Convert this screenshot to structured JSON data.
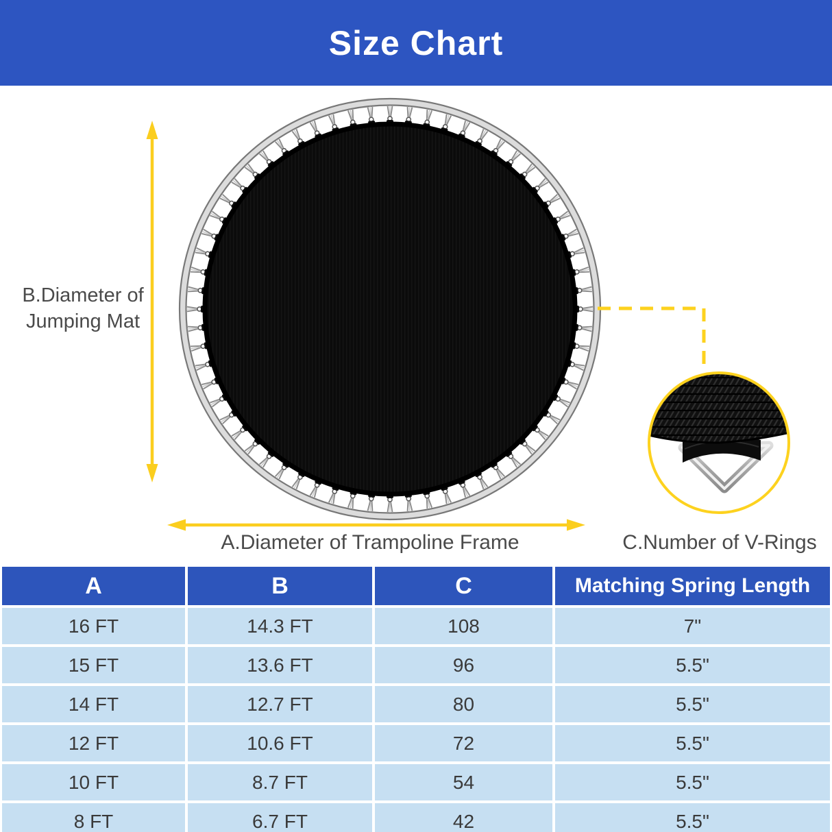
{
  "title": "Size Chart",
  "colors": {
    "banner_blue": "#2d55c1",
    "table_header_blue": "#2d55bb",
    "table_row_blue": "#c6dff2",
    "accent_yellow": "#fbce1e",
    "label_gray": "#4a4a4a",
    "mat_black": "#0b0b0b",
    "frame_gray": "#787878"
  },
  "diagram": {
    "label_b_line1": "B.Diameter of",
    "label_b_line2": "Jumping Mat",
    "label_a": "A.Diameter of Trampoline Frame",
    "label_c": "C.Number of V-Rings",
    "springs_count": 64
  },
  "table": {
    "headers": [
      "A",
      "B",
      "C",
      "Matching Spring Length"
    ],
    "rows": [
      [
        "16 FT",
        "14.3 FT",
        "108",
        "7\""
      ],
      [
        "15 FT",
        "13.6 FT",
        "96",
        "5.5\""
      ],
      [
        "14 FT",
        "12.7 FT",
        "80",
        "5.5\""
      ],
      [
        "12 FT",
        "10.6 FT",
        "72",
        "5.5\""
      ],
      [
        "10 FT",
        "8.7 FT",
        "54",
        "5.5\""
      ],
      [
        "8 FT",
        "6.7 FT",
        "42",
        "5.5\""
      ]
    ]
  }
}
